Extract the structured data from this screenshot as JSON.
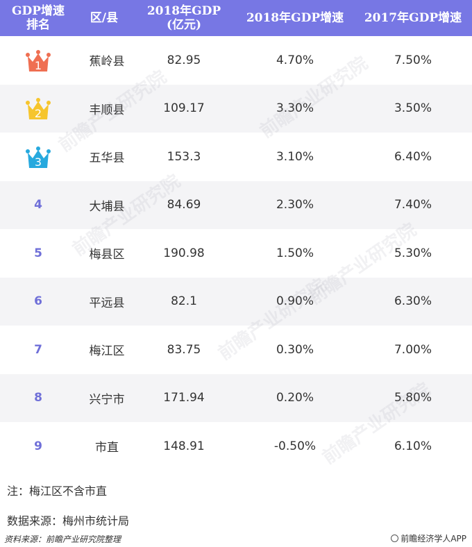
{
  "header": {
    "rank": "GDP增速\n排名",
    "rank_l1": "GDP增速",
    "rank_l2": "排名",
    "district": "区/县",
    "gdp_l1": "2018年GDP",
    "gdp_l2": "(亿元)",
    "growth2018": "2018年GDP增速",
    "growth2017": "2017年GDP增速"
  },
  "rows": [
    {
      "rank": "1",
      "crown": "crown-orange-icon",
      "crown_color": "#ef6f52",
      "district": "蕉岭县",
      "gdp": "82.95",
      "g2018": "4.70%",
      "g2017": "7.50%"
    },
    {
      "rank": "2",
      "crown": "crown-yellow-icon",
      "crown_color": "#f6c52d",
      "district": "丰顺县",
      "gdp": "109.17",
      "g2018": "3.30%",
      "g2017": "3.50%"
    },
    {
      "rank": "3",
      "crown": "crown-blue-icon",
      "crown_color": "#27a9de",
      "district": "五华县",
      "gdp": "153.3",
      "g2018": "3.10%",
      "g2017": "6.40%"
    },
    {
      "rank": "4",
      "district": "大埔县",
      "gdp": "84.69",
      "g2018": "2.30%",
      "g2017": "7.40%"
    },
    {
      "rank": "5",
      "district": "梅县区",
      "gdp": "190.98",
      "g2018": "1.50%",
      "g2017": "5.30%"
    },
    {
      "rank": "6",
      "district": "平远县",
      "gdp": "82.1",
      "g2018": "0.90%",
      "g2017": "6.30%"
    },
    {
      "rank": "7",
      "district": "梅江区",
      "gdp": "83.75",
      "g2018": "0.30%",
      "g2017": "7.00%"
    },
    {
      "rank": "8",
      "district": "兴宁市",
      "gdp": "171.94",
      "g2018": "0.20%",
      "g2017": "5.80%"
    },
    {
      "rank": "9",
      "district": "市直",
      "gdp": "148.91",
      "g2018": "-0.50%",
      "g2017": "6.10%"
    }
  ],
  "notes": {
    "note1": "注：梅江区不含市直",
    "note2": "数据来源：梅州市统计局"
  },
  "footer": {
    "left": "资料来源：前瞻产业研究院整理",
    "right": "前瞻经济学人APP"
  },
  "watermark": "前瞻产业研究院"
}
